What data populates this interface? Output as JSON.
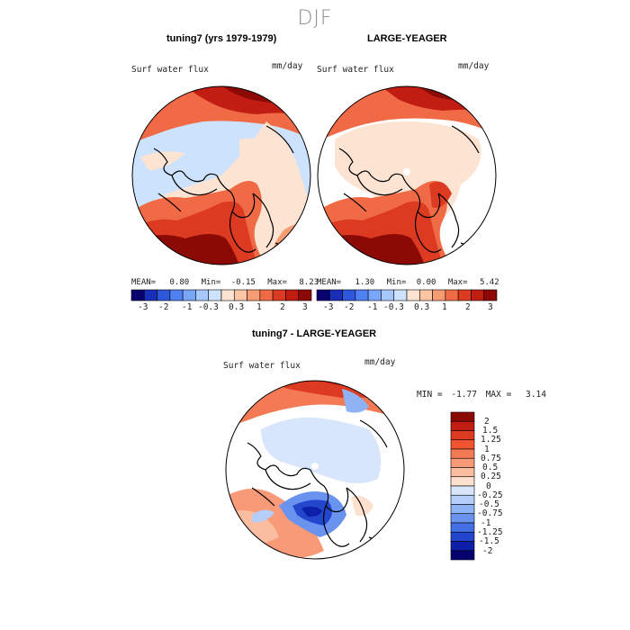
{
  "figure_title": "DJF",
  "panels": [
    {
      "title": "tuning7 (yrs 1979-1979)",
      "field": "Surf water flux",
      "units": "mm/day",
      "stats": {
        "mean_label": "MEAN=",
        "mean": "0.80",
        "min_label": "Min=",
        "min": "-0.15",
        "max_label": "Max=",
        "max": "8.23"
      }
    },
    {
      "title": "LARGE-YEAGER",
      "field": "Surf water flux",
      "units": "mm/day",
      "stats": {
        "mean_label": "MEAN=",
        "mean": "1.30",
        "min_label": "Min=",
        "min": "0.00",
        "max_label": "Max=",
        "max": "5.42"
      }
    },
    {
      "title": "tuning7 - LARGE-YEAGER",
      "field": "Surf water flux",
      "units": "mm/day",
      "minmax": {
        "min_label": "MIN =",
        "min": "-1.77",
        "max_label": "MAX =",
        "max": "3.14"
      }
    }
  ],
  "colorbar_top": {
    "tick_labels": [
      "-3",
      "-2",
      "-1",
      "-0.3",
      "0.3",
      "1",
      "2",
      "3"
    ],
    "colors": [
      "#08006e",
      "#1a2fb8",
      "#2f58dc",
      "#4f7ff0",
      "#7aa6fa",
      "#a6c8fc",
      "#cde2fd",
      "#fde4d2",
      "#fbc5a6",
      "#f79c73",
      "#f06b45",
      "#dd3a22",
      "#c11d12",
      "#8b0a05"
    ]
  },
  "colorbar_diff": {
    "tick_labels": [
      "2",
      "1.5",
      "1.25",
      "1",
      "0.75",
      "0.5",
      "0.25",
      "0",
      "-0.25",
      "-0.5",
      "-0.75",
      "-1",
      "-1.25",
      "-1.5",
      "-2"
    ],
    "colors": [
      "#8b0a05",
      "#c11d12",
      "#dd3a22",
      "#f0552f",
      "#f47a55",
      "#f89a78",
      "#fbbd9f",
      "#fde0ce",
      "#d7e6fb",
      "#b5cff8",
      "#8fb2f5",
      "#6a93f0",
      "#4470e6",
      "#2246cc",
      "#0c1fa8",
      "#05006e"
    ]
  }
}
